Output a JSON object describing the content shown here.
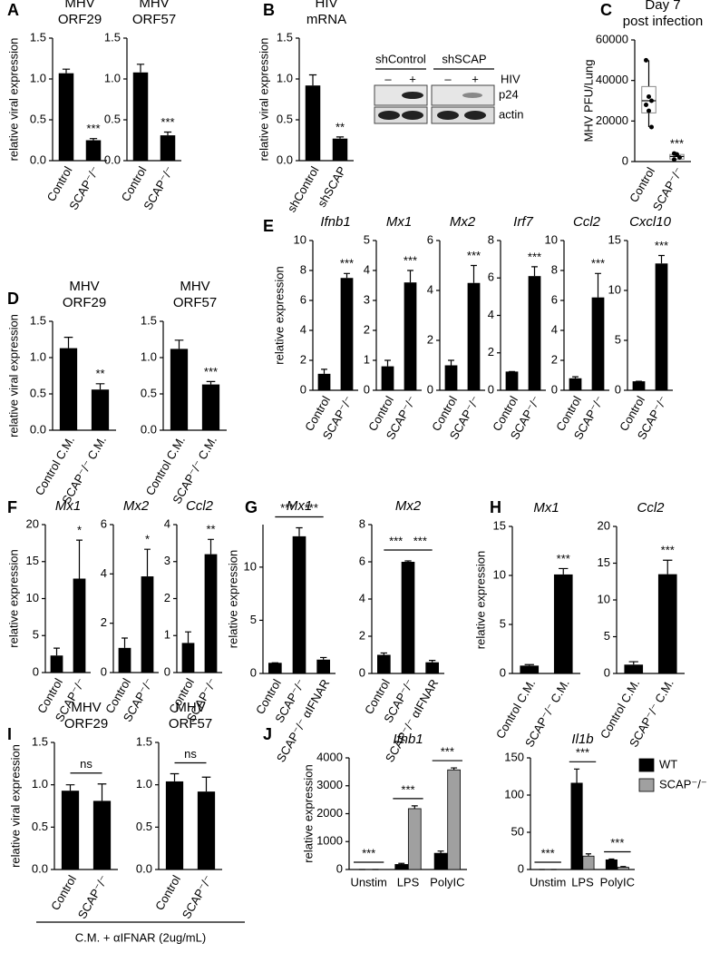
{
  "chart_data": [
    {
      "panel": "A",
      "type": "bar",
      "title": [
        "MHV",
        "ORF29"
      ],
      "ylabel": "relative viral expression",
      "categories": [
        "Control",
        "SCAP⁻/⁻"
      ],
      "values": [
        1.07,
        0.25
      ],
      "errors": [
        0.05,
        0.02
      ],
      "significance": [
        null,
        "***"
      ],
      "color": "#000000",
      "ylim": [
        0,
        1.5
      ],
      "yticks": [
        {
          "value": 0,
          "label": "0.0"
        },
        0.5,
        {
          "value": 1,
          "label": "1.0"
        },
        1.5
      ]
    },
    {
      "type": "bar",
      "title": [
        "MHV",
        "ORF57"
      ],
      "categories": [
        "Control",
        "SCAP⁻/⁻"
      ],
      "values": [
        1.08,
        0.31
      ],
      "errors": [
        0.1,
        0.04
      ],
      "significance": [
        null,
        "***"
      ],
      "color": "#000000",
      "ylim": [
        0,
        1.5
      ],
      "yticks": [
        {
          "value": 0,
          "label": "0.0"
        },
        0.5,
        {
          "value": 1,
          "label": "1.0"
        },
        1.5
      ]
    },
    {
      "panel": "B",
      "type": "bar",
      "title": [
        "HIV",
        "mRNA"
      ],
      "ylabel": "relative viral expression",
      "categories": [
        "shControl",
        "shSCAP"
      ],
      "values": [
        0.92,
        0.27
      ],
      "errors": [
        0.13,
        0.02
      ],
      "significance": [
        null,
        "**"
      ],
      "color": "#000000",
      "ylim": [
        0,
        1.5
      ],
      "yticks": [
        {
          "value": 0,
          "label": "0.0"
        },
        0.5,
        {
          "value": 1,
          "label": "1.0"
        },
        1.5
      ]
    },
    {
      "panel": "C",
      "type": "box",
      "title": [
        "Day 7",
        "post infection"
      ],
      "ylabel": "MHV PFU/Lung",
      "categories": [
        "Control",
        "SCAP⁻/⁻"
      ],
      "boxes": [
        {
          "min": 17000,
          "q1": 24000,
          "median": 30000,
          "q3": 37000,
          "max": 50000
        },
        {
          "min": 1000,
          "q1": 1200,
          "median": 2500,
          "q3": 3500,
          "max": 4000
        }
      ],
      "points": [
        [
          50000,
          32000,
          30000,
          28000,
          25000,
          17000
        ],
        [
          4000,
          3500,
          2000,
          1000
        ]
      ],
      "significance": [
        null,
        "***"
      ],
      "color": "#000000",
      "ylim": [
        0,
        60000
      ],
      "yticks": [
        0,
        20000,
        40000,
        60000
      ]
    },
    {
      "panel": "D",
      "type": "bar",
      "title": [
        "MHV",
        "ORF29"
      ],
      "ylabel": "relative viral expression",
      "categories": [
        "Control C.M.",
        "SCAP⁻/⁻ C.M."
      ],
      "values": [
        1.13,
        0.56
      ],
      "errors": [
        0.15,
        0.08
      ],
      "significance": [
        null,
        "**"
      ],
      "color": "#000000",
      "ylim": [
        0,
        1.5
      ],
      "yticks": [
        {
          "value": 0,
          "label": "0.0"
        },
        0.5,
        {
          "value": 1,
          "label": "1.0"
        },
        1.5
      ]
    },
    {
      "type": "bar",
      "title": [
        "MHV",
        "ORF57"
      ],
      "categories": [
        "Control C.M.",
        "SCAP⁻/⁻ C.M."
      ],
      "values": [
        1.12,
        0.63
      ],
      "errors": [
        0.12,
        0.04
      ],
      "significance": [
        null,
        "***"
      ],
      "color": "#000000",
      "ylim": [
        0,
        1.5
      ],
      "yticks": [
        {
          "value": 0,
          "label": "0.0"
        },
        0.5,
        {
          "value": 1,
          "label": "1.0"
        },
        1.5
      ]
    },
    {
      "panel": "E",
      "type": "bar",
      "title": [
        "Ifnb1"
      ],
      "italic": true,
      "ylabel": "relative expression",
      "categories": [
        "Control",
        "SCAP⁻/⁻"
      ],
      "values": [
        1.1,
        7.5
      ],
      "errors": [
        0.3,
        0.3
      ],
      "significance": [
        null,
        "***"
      ],
      "color": "#000000",
      "ylim": [
        0,
        10
      ],
      "yticks": [
        0,
        2,
        4,
        6,
        8,
        10
      ]
    },
    {
      "type": "bar",
      "title": [
        "Mx1"
      ],
      "italic": true,
      "categories": [
        "Control",
        "SCAP⁻/⁻"
      ],
      "values": [
        0.8,
        3.6
      ],
      "errors": [
        0.2,
        0.4
      ],
      "significance": [
        null,
        "***"
      ],
      "color": "#000000",
      "ylim": [
        0,
        5
      ],
      "yticks": [
        0,
        1,
        2,
        3,
        4,
        5
      ]
    },
    {
      "type": "bar",
      "title": [
        "Mx2"
      ],
      "italic": true,
      "categories": [
        "Control",
        "SCAP⁻/⁻"
      ],
      "values": [
        1.0,
        4.3
      ],
      "errors": [
        0.2,
        0.7
      ],
      "significance": [
        null,
        "***"
      ],
      "color": "#000000",
      "ylim": [
        0,
        6
      ],
      "yticks": [
        0,
        2,
        4,
        6
      ]
    },
    {
      "type": "bar",
      "title": [
        "Irf7"
      ],
      "italic": true,
      "categories": [
        "Control",
        "SCAP⁻/⁻"
      ],
      "values": [
        1.0,
        6.1
      ],
      "errors": [
        0,
        0.5
      ],
      "significance": [
        null,
        "***"
      ],
      "color": "#000000",
      "ylim": [
        0,
        8
      ],
      "yticks": [
        0,
        2,
        4,
        6,
        8
      ]
    },
    {
      "type": "bar",
      "title": [
        "Ccl2"
      ],
      "italic": true,
      "categories": [
        "Control",
        "SCAP⁻/⁻"
      ],
      "values": [
        0.8,
        6.2
      ],
      "errors": [
        0.1,
        1.6
      ],
      "significance": [
        null,
        "***"
      ],
      "color": "#000000",
      "ylim": [
        0,
        10
      ],
      "yticks": [
        0,
        2,
        4,
        6,
        8,
        10
      ]
    },
    {
      "type": "bar",
      "title": [
        "Cxcl10"
      ],
      "italic": true,
      "categories": [
        "Control",
        "SCAP⁻/⁻"
      ],
      "values": [
        0.9,
        12.7
      ],
      "errors": [
        0,
        0.8
      ],
      "significance": [
        null,
        "***"
      ],
      "color": "#000000",
      "ylim": [
        0,
        15
      ],
      "yticks": [
        0,
        5,
        10,
        15
      ]
    },
    {
      "panel": "F",
      "type": "bar",
      "title": [
        "Mx1"
      ],
      "italic": true,
      "ylabel": "relative expression",
      "categories": [
        "Control",
        "SCAP⁻/⁻"
      ],
      "values": [
        2.3,
        12.7
      ],
      "errors": [
        1.0,
        5.2
      ],
      "significance": [
        null,
        "*"
      ],
      "color": "#000000",
      "ylim": [
        0,
        20
      ],
      "yticks": [
        0,
        5,
        10,
        15,
        20
      ]
    },
    {
      "type": "bar",
      "title": [
        "Mx2"
      ],
      "italic": true,
      "categories": [
        "Control",
        "SCAP⁻/⁻"
      ],
      "values": [
        1.0,
        3.9
      ],
      "errors": [
        0.4,
        1.1
      ],
      "significance": [
        null,
        "*"
      ],
      "color": "#000000",
      "ylim": [
        0,
        6
      ],
      "yticks": [
        0,
        2,
        4,
        6
      ]
    },
    {
      "type": "bar",
      "title": [
        "Ccl2"
      ],
      "italic": true,
      "categories": [
        "Control",
        "SCAP⁻/⁻"
      ],
      "values": [
        0.8,
        3.2
      ],
      "errors": [
        0.3,
        0.4
      ],
      "significance": [
        null,
        "**"
      ],
      "color": "#000000",
      "ylim": [
        0,
        4
      ],
      "yticks": [
        0,
        1,
        2,
        3,
        4
      ]
    },
    {
      "panel": "G",
      "type": "bar",
      "title": [
        "Mx1"
      ],
      "italic": true,
      "ylabel": "relative expression",
      "categories": [
        "Control",
        "SCAP⁻/⁻",
        "SCAP⁻/⁻ αIFNAR"
      ],
      "values": [
        1.0,
        12.9,
        1.3
      ],
      "errors": [
        0,
        0.8,
        0.2
      ],
      "comparisons": [
        {
          "from": 0,
          "to": 1,
          "label": "***"
        },
        {
          "from": 1,
          "to": 2,
          "label": "***"
        }
      ],
      "color": "#000000",
      "ylim": [
        0,
        14
      ],
      "yticks": [
        0,
        5,
        10
      ]
    },
    {
      "type": "bar",
      "title": [
        "Mx2"
      ],
      "italic": true,
      "categories": [
        "Control",
        "SCAP⁻/⁻",
        "SCAP⁻/⁻ αIFNAR"
      ],
      "values": [
        1.0,
        6.0,
        0.6
      ],
      "errors": [
        0.1,
        0.05,
        0.1
      ],
      "comparisons": [
        {
          "from": 0,
          "to": 1,
          "label": "***"
        },
        {
          "from": 1,
          "to": 2,
          "label": "***"
        }
      ],
      "color": "#000000",
      "ylim": [
        0,
        8
      ],
      "yticks": [
        0,
        2,
        4,
        6,
        8
      ]
    },
    {
      "panel": "H",
      "type": "bar",
      "title": [
        "Mx1"
      ],
      "italic": true,
      "ylabel": "relative expression",
      "categories": [
        "Control C.M.",
        "SCAP⁻/⁻ C.M."
      ],
      "values": [
        0.8,
        10.1
      ],
      "errors": [
        0.1,
        0.6
      ],
      "significance": [
        null,
        "***"
      ],
      "color": "#000000",
      "ylim": [
        0,
        15
      ],
      "yticks": [
        0,
        5,
        10,
        15
      ]
    },
    {
      "type": "bar",
      "title": [
        "Ccl2"
      ],
      "italic": true,
      "categories": [
        "Control C.M.",
        "SCAP⁻/⁻ C.M."
      ],
      "values": [
        1.2,
        13.5
      ],
      "errors": [
        0.4,
        1.9
      ],
      "significance": [
        null,
        "***"
      ],
      "color": "#000000",
      "ylim": [
        0,
        20
      ],
      "yticks": [
        0,
        5,
        10,
        15,
        20
      ]
    },
    {
      "panel": "I",
      "type": "bar",
      "title": [
        "MHV",
        "ORF29"
      ],
      "ylabel": "relative viral expression",
      "footnote": "C.M. + αIFNAR (2ug/mL)",
      "categories": [
        "Control",
        "SCAP⁻/⁻"
      ],
      "values": [
        0.93,
        0.81
      ],
      "errors": [
        0.07,
        0.2
      ],
      "comparisons": [
        {
          "from": 0,
          "to": 1,
          "label": "ns"
        }
      ],
      "color": "#000000",
      "ylim": [
        0,
        1.5
      ],
      "yticks": [
        {
          "value": 0,
          "label": "0.0"
        },
        0.5,
        {
          "value": 1,
          "label": "1.0"
        },
        1.5
      ]
    },
    {
      "type": "bar",
      "title": [
        "MHV",
        "ORF57"
      ],
      "categories": [
        "Control",
        "SCAP⁻/⁻"
      ],
      "values": [
        1.04,
        0.92
      ],
      "errors": [
        0.09,
        0.17
      ],
      "comparisons": [
        {
          "from": 0,
          "to": 1,
          "label": "ns"
        }
      ],
      "color": "#000000",
      "ylim": [
        0,
        1.5
      ],
      "yticks": [
        {
          "value": 0,
          "label": "0.0"
        },
        0.5,
        {
          "value": 1,
          "label": "1.0"
        },
        1.5
      ]
    },
    {
      "panel": "J",
      "type": "grouped-bar",
      "title": [
        "Ifnb1"
      ],
      "italic": true,
      "ylabel": "relative expression",
      "categories": [
        "Unstim",
        "LPS",
        "PolyIC"
      ],
      "series": [
        {
          "name": "WT",
          "color": "#000000",
          "values": [
            0,
            180,
            580
          ],
          "errors": [
            0,
            40,
            80
          ]
        },
        {
          "name": "SCAP⁻/⁻",
          "color": "#a0a0a0",
          "values": [
            0,
            2180,
            3570
          ],
          "errors": [
            0,
            100,
            70
          ]
        }
      ],
      "significance": [
        "***",
        "***",
        "***"
      ],
      "ylim": [
        0,
        4000
      ],
      "yticks": [
        0,
        1000,
        2000,
        3000,
        4000
      ]
    },
    {
      "type": "grouped-bar",
      "title": [
        "Il1b"
      ],
      "italic": true,
      "categories": [
        "Unstim",
        "LPS",
        "PolyIC"
      ],
      "series": [
        {
          "name": "WT",
          "color": "#000000",
          "values": [
            0,
            116,
            13
          ],
          "errors": [
            0,
            19,
            1
          ]
        },
        {
          "name": "SCAP⁻/⁻",
          "color": "#a0a0a0",
          "values": [
            0,
            18,
            3
          ],
          "errors": [
            0,
            3,
            1
          ]
        }
      ],
      "significance": [
        "***",
        "***",
        "***"
      ],
      "legend": "upper right",
      "ylim": [
        0,
        150
      ],
      "yticks": [
        0,
        50,
        100,
        150
      ]
    }
  ],
  "blot": {
    "groups": [
      "shControl",
      "shSCAP"
    ],
    "lanes": [
      "–",
      "+",
      "–",
      "+"
    ],
    "treatment": "HIV",
    "rows": [
      "p24",
      "actin"
    ]
  }
}
